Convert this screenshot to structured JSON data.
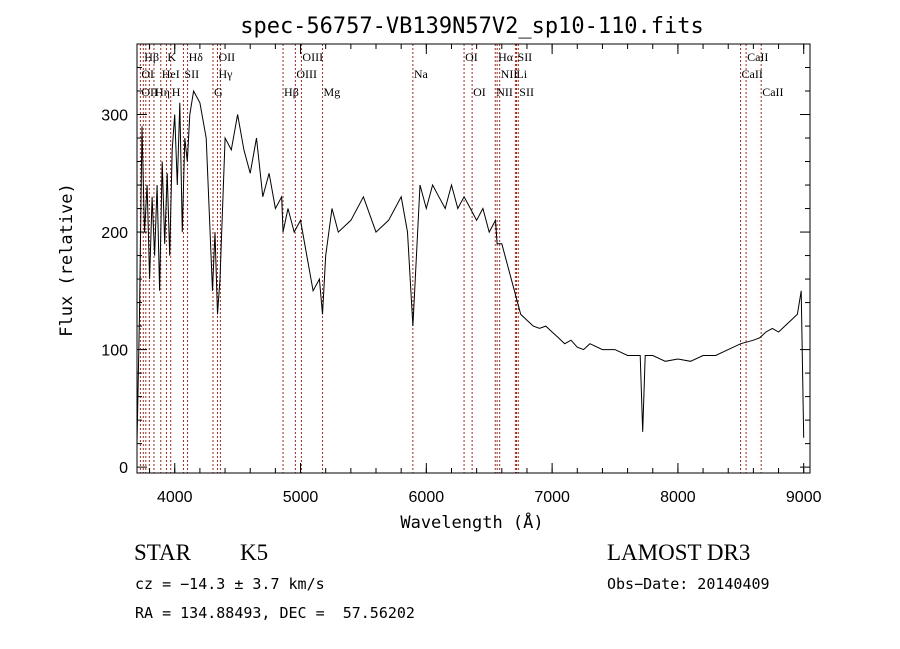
{
  "chart_data": {
    "type": "line",
    "title": "spec-56757-VB139N57V2_sp10-110.fits",
    "xlabel": "Wavelength (Å)",
    "ylabel": "Flux (relative)",
    "xlim": [
      3700,
      9050
    ],
    "ylim": [
      -5,
      360
    ],
    "xticks": [
      4000,
      5000,
      6000,
      7000,
      8000,
      9000
    ],
    "yticks": [
      0,
      100,
      200,
      300
    ],
    "line_color": "#000000",
    "marker_color": "#a0281e",
    "series": [
      {
        "x": [
          3700,
          3720,
          3740,
          3760,
          3780,
          3800,
          3820,
          3840,
          3860,
          3880,
          3900,
          3920,
          3940,
          3960,
          3980,
          4000,
          4020,
          4040,
          4060,
          4080,
          4100,
          4120,
          4150,
          4200,
          4250,
          4300,
          4320,
          4340,
          4360,
          4400,
          4450,
          4500,
          4550,
          4600,
          4650,
          4700,
          4750,
          4800,
          4850,
          4861,
          4900,
          4950,
          5000,
          5050,
          5100,
          5150,
          5175,
          5200,
          5250,
          5300,
          5400,
          5500,
          5600,
          5700,
          5800,
          5850,
          5893,
          5950,
          6000,
          6050,
          6100,
          6150,
          6200,
          6250,
          6300,
          6350,
          6400,
          6450,
          6500,
          6550,
          6563,
          6600,
          6650,
          6700,
          6750,
          6800,
          6850,
          6900,
          6950,
          7000,
          7050,
          7100,
          7150,
          7200,
          7250,
          7300,
          7400,
          7500,
          7600,
          7700,
          7720,
          7740,
          7800,
          7900,
          8000,
          8100,
          8200,
          8300,
          8400,
          8500,
          8600,
          8650,
          8700,
          8750,
          8800,
          8850,
          8900,
          8950,
          8980,
          9000
        ],
        "y": [
          20,
          130,
          290,
          200,
          240,
          160,
          230,
          180,
          240,
          150,
          260,
          190,
          250,
          180,
          270,
          300,
          240,
          310,
          200,
          280,
          260,
          300,
          320,
          310,
          280,
          150,
          200,
          130,
          160,
          280,
          270,
          300,
          270,
          250,
          280,
          230,
          250,
          220,
          230,
          200,
          220,
          200,
          210,
          180,
          150,
          160,
          130,
          180,
          220,
          200,
          210,
          230,
          200,
          210,
          230,
          200,
          120,
          240,
          220,
          240,
          230,
          220,
          240,
          220,
          230,
          220,
          210,
          220,
          200,
          210,
          190,
          190,
          170,
          150,
          130,
          125,
          120,
          118,
          120,
          115,
          110,
          105,
          108,
          102,
          100,
          105,
          100,
          100,
          95,
          95,
          30,
          95,
          95,
          90,
          92,
          90,
          95,
          95,
          100,
          105,
          108,
          110,
          115,
          118,
          115,
          120,
          125,
          130,
          150,
          25
        ]
      }
    ],
    "lines": {
      "row1": [
        {
          "label": "Hβ",
          "x": 3750
        },
        {
          "label": "K",
          "x": 3934
        },
        {
          "label": "Hδ",
          "x": 4102
        },
        {
          "label": "OII",
          "x": 4340
        },
        {
          "label": "OIII",
          "x": 5007
        },
        {
          "label": "OI",
          "x": 6300
        },
        {
          "label": "Hα",
          "x": 6563
        },
        {
          "label": "SII",
          "x": 6717
        },
        {
          "label": "CaII",
          "x": 8542
        }
      ],
      "row2": [
        {
          "label": "OI",
          "x": 3727
        },
        {
          "label": "HeI",
          "x": 3889
        },
        {
          "label": "SII",
          "x": 4069
        },
        {
          "label": "Hγ",
          "x": 4340
        },
        {
          "label": "OIII",
          "x": 4959
        },
        {
          "label": "Na",
          "x": 5893
        },
        {
          "label": "NII",
          "x": 6583
        },
        {
          "label": "Li",
          "x": 6708
        },
        {
          "label": "CaII",
          "x": 8498
        }
      ],
      "row3": [
        {
          "label": "OII",
          "x": 3727
        },
        {
          "label": "Hη",
          "x": 3835
        },
        {
          "label": "H",
          "x": 3968
        },
        {
          "label": "G",
          "x": 4304
        },
        {
          "label": "Hβ",
          "x": 4861
        },
        {
          "label": "Mg",
          "x": 5175
        },
        {
          "label": "OI",
          "x": 6364
        },
        {
          "label": "NII",
          "x": 6548
        },
        {
          "label": "SII",
          "x": 6731
        },
        {
          "label": "CaII",
          "x": 8662
        }
      ]
    },
    "marker_positions": [
      3727,
      3750,
      3770,
      3798,
      3835,
      3889,
      3934,
      3968,
      4069,
      4102,
      4304,
      4340,
      4363,
      4861,
      4959,
      5007,
      5175,
      5893,
      6300,
      6364,
      6548,
      6563,
      6583,
      6708,
      6717,
      6731,
      8498,
      8542,
      8662
    ]
  },
  "info": {
    "object_class": "STAR",
    "subclass": "K5",
    "survey": "LAMOST DR3",
    "cz": "cz = −14.3 ± 3.7 km/s",
    "obs_date": "Obs−Date: 20140409",
    "coords": "RA = 134.88493, DEC =  57.56202"
  }
}
